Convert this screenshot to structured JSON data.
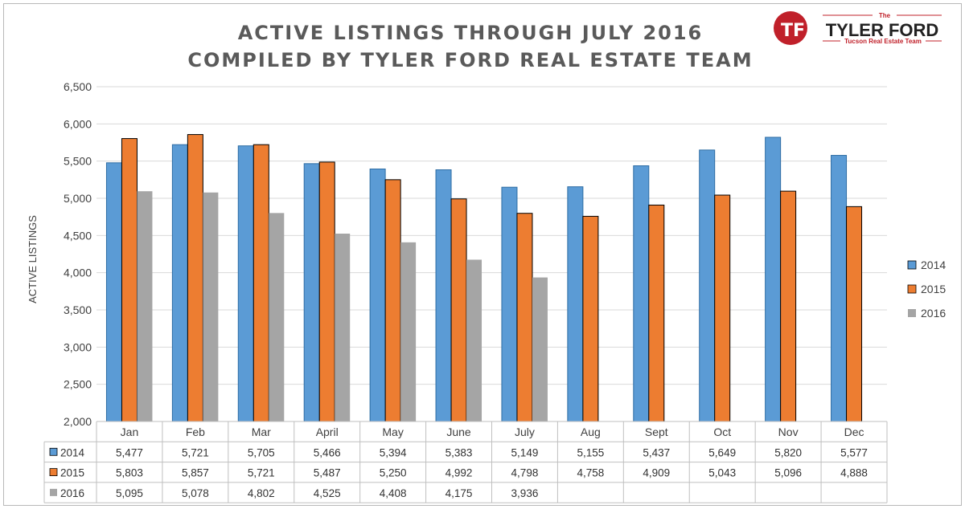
{
  "chart_data": {
    "type": "bar",
    "title_lines": [
      "ACTIVE LISTINGS THROUGH JULY 2016",
      "COMPILED BY TYLER FORD REAL ESTATE TEAM"
    ],
    "ylabel": "ACTIVE LISTINGS",
    "ylim": [
      2000,
      6500
    ],
    "yticks": [
      2000,
      2500,
      3000,
      3500,
      4000,
      4500,
      5000,
      5500,
      6000,
      6500
    ],
    "grid": true,
    "legend_position": "right",
    "categories": [
      "Jan",
      "Feb",
      "Mar",
      "April",
      "May",
      "June",
      "July",
      "Aug",
      "Sept",
      "Oct",
      "Nov",
      "Dec"
    ],
    "series": [
      {
        "name": "2014",
        "color": "#5b9bd5",
        "values": [
          5477,
          5721,
          5705,
          5466,
          5394,
          5383,
          5149,
          5155,
          5437,
          5649,
          5820,
          5577
        ]
      },
      {
        "name": "2015",
        "color": "#ed7d31",
        "values": [
          5803,
          5857,
          5721,
          5487,
          5250,
          4992,
          4798,
          4758,
          4909,
          5043,
          5096,
          4888
        ]
      },
      {
        "name": "2016",
        "color": "#a5a5a5",
        "values": [
          5095,
          5078,
          4802,
          4525,
          4408,
          4175,
          3936,
          null,
          null,
          null,
          null,
          null
        ]
      }
    ],
    "data_table": true
  },
  "logo": {
    "small_text": "The",
    "main_text": "TYLER FORD",
    "sub_text": "Tucson Real Estate Team",
    "color": "#c0202a"
  }
}
